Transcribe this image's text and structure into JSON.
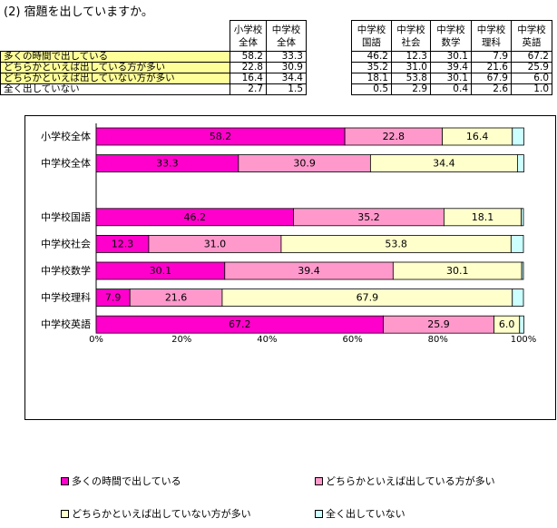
{
  "heading": "(2) 宿題を出していますか。",
  "table": {
    "headers": [
      "小学校\n全体",
      "中学校\n全体",
      "",
      "中学校\n国語",
      "中学校\n社会",
      "中学校\n数学",
      "中学校\n理科",
      "中学校\n英語"
    ],
    "rows": [
      {
        "label": "多くの時間で出している",
        "values": [
          "58.2",
          "33.3",
          "",
          "46.2",
          "12.3",
          "30.1",
          "7.9",
          "67.2"
        ]
      },
      {
        "label": "どちらかといえば出している方が多い",
        "values": [
          "22.8",
          "30.9",
          "",
          "35.2",
          "31.0",
          "39.4",
          "21.6",
          "25.9"
        ]
      },
      {
        "label": "どちらかといえば出していない方が多い",
        "values": [
          "16.4",
          "34.4",
          "",
          "18.1",
          "53.8",
          "30.1",
          "67.9",
          "6.0"
        ]
      },
      {
        "label": "全く出していない",
        "values": [
          "2.7",
          "1.5",
          "",
          "0.5",
          "2.9",
          "0.4",
          "2.6",
          "1.0"
        ]
      }
    ]
  },
  "chart_data": {
    "type": "bar",
    "orientation": "horizontal",
    "stacked": true,
    "categories": [
      "小学校全体",
      "中学校全体",
      "",
      "中学校国語",
      "中学校社会",
      "中学校数学",
      "中学校理科",
      "中学校英語"
    ],
    "series": [
      {
        "name": "多くの時間で出している",
        "color": "#ff00cc",
        "values": [
          58.2,
          33.3,
          null,
          46.2,
          12.3,
          30.1,
          7.9,
          67.2
        ]
      },
      {
        "name": "どちらかといえば出している方が多い",
        "color": "#ff99cc",
        "values": [
          22.8,
          30.9,
          null,
          35.2,
          31.0,
          39.4,
          21.6,
          25.9
        ]
      },
      {
        "name": "どちらかといえば出していない方が多い",
        "color": "#ffffcc",
        "values": [
          16.4,
          34.4,
          null,
          18.1,
          53.8,
          30.1,
          67.9,
          6.0
        ]
      },
      {
        "name": "全く出していない",
        "color": "#ccffff",
        "values": [
          2.7,
          1.5,
          null,
          0.5,
          2.9,
          0.4,
          2.6,
          1.0
        ]
      }
    ],
    "label_series": [
      0,
      1,
      2
    ],
    "xlim": [
      0,
      100
    ],
    "xticks": [
      "0%",
      "20%",
      "40%",
      "60%",
      "80%",
      "100%"
    ],
    "legend_position": "bottom"
  }
}
